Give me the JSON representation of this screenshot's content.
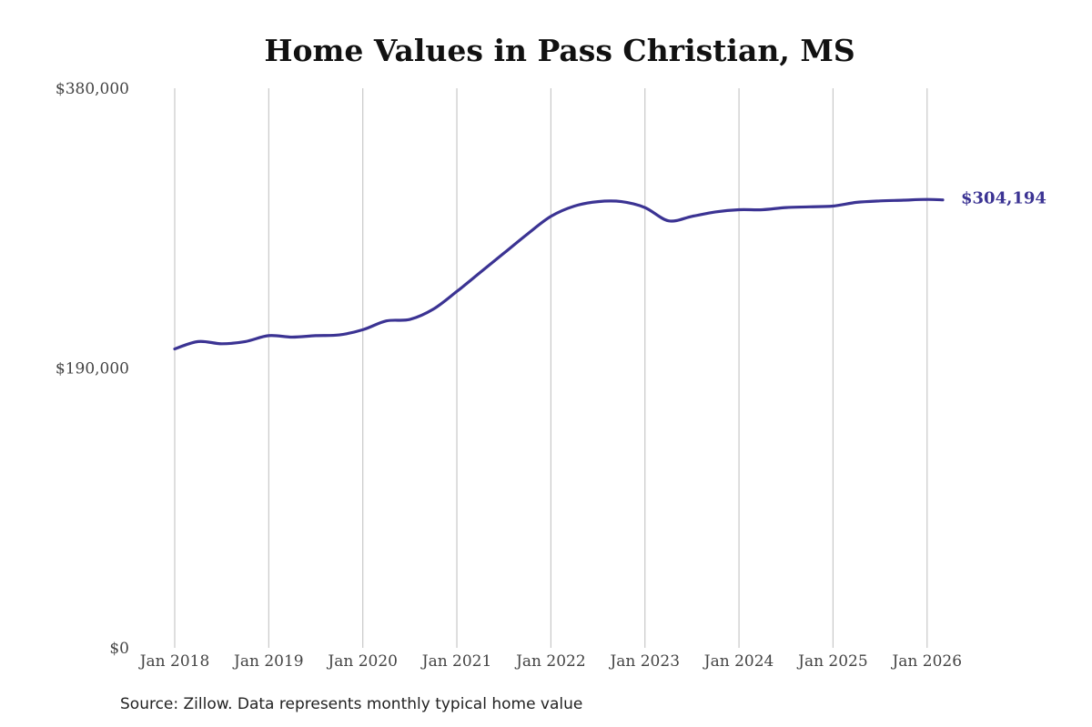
{
  "chart_data": {
    "type": "line",
    "title": "Home Values in Pass Christian, MS",
    "xlabel": "",
    "ylabel": "",
    "y_ticks": [
      {
        "value": 380000,
        "label": "$380,000"
      },
      {
        "value": 190000,
        "label": "$190,000"
      },
      {
        "value": 0,
        "label": "$0"
      }
    ],
    "ylim": [
      0,
      380000
    ],
    "x_ticks": [
      {
        "date": "2018-01",
        "label": "Jan 2018"
      },
      {
        "date": "2019-01",
        "label": "Jan 2019"
      },
      {
        "date": "2020-01",
        "label": "Jan 2020"
      },
      {
        "date": "2021-01",
        "label": "Jan 2021"
      },
      {
        "date": "2022-01",
        "label": "Jan 2022"
      },
      {
        "date": "2023-01",
        "label": "Jan 2023"
      },
      {
        "date": "2024-01",
        "label": "Jan 2024"
      },
      {
        "date": "2025-01",
        "label": "Jan 2025"
      },
      {
        "date": "2026-01",
        "label": "Jan 2026"
      }
    ],
    "xlim": [
      "2018-01",
      "2026-03"
    ],
    "grid": "vertical",
    "series": [
      {
        "color": "#3b3393",
        "points": [
          {
            "x": "2018-01",
            "y": 203000
          },
          {
            "x": "2018-04",
            "y": 208000
          },
          {
            "x": "2018-07",
            "y": 206500
          },
          {
            "x": "2018-10",
            "y": 208000
          },
          {
            "x": "2019-01",
            "y": 212000
          },
          {
            "x": "2019-04",
            "y": 211000
          },
          {
            "x": "2019-07",
            "y": 212000
          },
          {
            "x": "2019-10",
            "y": 212500
          },
          {
            "x": "2020-01",
            "y": 216000
          },
          {
            "x": "2020-04",
            "y": 222000
          },
          {
            "x": "2020-07",
            "y": 223000
          },
          {
            "x": "2020-10",
            "y": 230000
          },
          {
            "x": "2021-01",
            "y": 242000
          },
          {
            "x": "2021-04",
            "y": 255000
          },
          {
            "x": "2021-07",
            "y": 268000
          },
          {
            "x": "2021-10",
            "y": 281000
          },
          {
            "x": "2022-01",
            "y": 293000
          },
          {
            "x": "2022-04",
            "y": 300000
          },
          {
            "x": "2022-07",
            "y": 303000
          },
          {
            "x": "2022-10",
            "y": 303000
          },
          {
            "x": "2023-01",
            "y": 299000
          },
          {
            "x": "2023-04",
            "y": 290000
          },
          {
            "x": "2023-07",
            "y": 293000
          },
          {
            "x": "2023-10",
            "y": 296000
          },
          {
            "x": "2024-01",
            "y": 297500
          },
          {
            "x": "2024-04",
            "y": 297500
          },
          {
            "x": "2024-07",
            "y": 299000
          },
          {
            "x": "2024-10",
            "y": 299500
          },
          {
            "x": "2025-01",
            "y": 300000
          },
          {
            "x": "2025-04",
            "y": 302500
          },
          {
            "x": "2025-07",
            "y": 303500
          },
          {
            "x": "2025-10",
            "y": 304000
          },
          {
            "x": "2026-01",
            "y": 304500
          },
          {
            "x": "2026-03",
            "y": 304194
          }
        ]
      }
    ],
    "end_label": "$304,194"
  },
  "source_note": "Source: Zillow. Data represents monthly typical home value"
}
